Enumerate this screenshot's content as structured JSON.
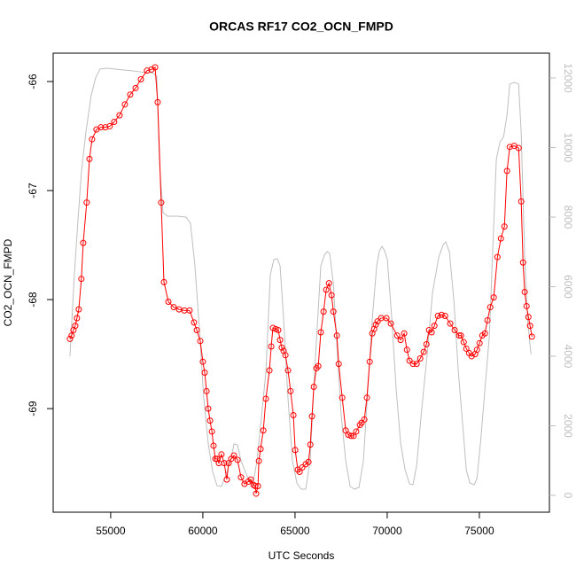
{
  "chart_data": {
    "type": "line",
    "title": "ORCAS RF17 CO2_OCN_FMPD",
    "x_label": "UTC Seconds",
    "y_label": "CO2_OCN_FMPD",
    "xlim": [
      51880,
      78800
    ],
    "xticks": [
      55000,
      60000,
      65000,
      70000,
      75000
    ],
    "ylim": [
      -69.95,
      -65.74
    ],
    "yticks": [
      -66,
      -67,
      -68,
      -69
    ],
    "y2lim": [
      -484,
      12713
    ],
    "y2ticks": [
      0,
      2000,
      4000,
      6000,
      8000,
      10000,
      12000
    ],
    "series": [
      {
        "color": "#bebebe",
        "axis": "y2",
        "x": [
          52790,
          53030,
          53220,
          53410,
          53650,
          53940,
          54180,
          54420,
          54760,
          55240,
          56200,
          56930,
          57260,
          57500,
          57650,
          57840,
          58080,
          58610,
          59090,
          59330,
          59570,
          59810,
          60050,
          60290,
          60530,
          60770,
          61010,
          61250,
          61500,
          61690,
          61880,
          62070,
          62260,
          62460,
          62700,
          62940,
          63180,
          63420,
          63660,
          63850,
          64040,
          64190,
          64380,
          64620,
          64860,
          65100,
          65340,
          65580,
          65820,
          66060,
          66400,
          66590,
          66740,
          66880,
          67080,
          67270,
          67510,
          67750,
          67990,
          68230,
          68470,
          68710,
          68950,
          69190,
          69430,
          69580,
          69720,
          69860,
          70010,
          70250,
          70490,
          70730,
          70970,
          71210,
          71400,
          71600,
          71880,
          72170,
          72460,
          72800,
          73040,
          73180,
          73380,
          73620,
          73860,
          74100,
          74290,
          74480,
          74720,
          74870,
          75060,
          75300,
          75540,
          75730,
          75920,
          76120,
          76310,
          76500,
          76650,
          76890,
          77130,
          77270,
          77460,
          77610,
          77800
        ],
        "values": [
          4000,
          6345,
          7873,
          9275,
          10421,
          11491,
          12001,
          12256,
          12281,
          12256,
          12205,
          12154,
          12154,
          12052,
          9530,
          8128,
          8026,
          8026,
          8001,
          7822,
          6599,
          4816,
          2777,
          1503,
          688,
          280,
          255,
          586,
          994,
          1478,
          1452,
          994,
          739,
          484,
          280,
          994,
          2268,
          3542,
          6345,
          6778,
          6803,
          6599,
          5071,
          2777,
          994,
          357,
          178,
          178,
          994,
          3542,
          6599,
          6905,
          7007,
          6956,
          6090,
          4306,
          2268,
          994,
          255,
          178,
          229,
          994,
          3032,
          5071,
          6599,
          7032,
          7160,
          7032,
          6778,
          5071,
          3032,
          1503,
          739,
          331,
          306,
          866,
          2523,
          4051,
          5835,
          6854,
          7211,
          7287,
          6982,
          5580,
          3542,
          2013,
          739,
          357,
          306,
          484,
          1503,
          3032,
          4561,
          7109,
          9657,
          10167,
          10294,
          10931,
          11823,
          11874,
          11823,
          10421,
          6854,
          5071,
          4051
        ]
      },
      {
        "color": "#ff0000",
        "marker": "circle",
        "x": [
          52790,
          52880,
          52980,
          53080,
          53170,
          53270,
          53410,
          53510,
          53700,
          53850,
          53990,
          54230,
          54470,
          54710,
          54950,
          55190,
          55480,
          55770,
          56060,
          56350,
          56640,
          56970,
          57210,
          57410,
          57550,
          57740,
          57890,
          58130,
          58420,
          58710,
          59000,
          59280,
          59520,
          59670,
          59860,
          60000,
          60100,
          60200,
          60290,
          60390,
          60490,
          60580,
          60680,
          60770,
          60870,
          61010,
          61160,
          61300,
          61400,
          61540,
          61690,
          61880,
          62070,
          62260,
          62460,
          62600,
          62750,
          62840,
          62890,
          62990,
          63040,
          63130,
          63280,
          63420,
          63610,
          63710,
          63800,
          63950,
          64090,
          64190,
          64280,
          64380,
          64480,
          64620,
          64760,
          64910,
          65010,
          65150,
          65250,
          65390,
          65580,
          65730,
          65830,
          65920,
          66020,
          66160,
          66260,
          66400,
          66550,
          66690,
          66840,
          66980,
          67080,
          67270,
          67370,
          67560,
          67750,
          67890,
          68040,
          68180,
          68320,
          68520,
          68610,
          68760,
          68900,
          69050,
          69190,
          69290,
          69380,
          69480,
          69670,
          69960,
          70200,
          70540,
          70730,
          70920,
          71070,
          71210,
          71400,
          71600,
          71790,
          71980,
          72130,
          72270,
          72410,
          72560,
          72750,
          72950,
          73140,
          73420,
          73660,
          73900,
          74000,
          74150,
          74290,
          74440,
          74580,
          74770,
          74870,
          75010,
          75160,
          75300,
          75440,
          75590,
          75780,
          75980,
          76170,
          76360,
          76500,
          76650,
          76890,
          77130,
          77270,
          77370,
          77460,
          77560,
          77660,
          77750,
          77850
        ],
        "values": [
          -68.36,
          -68.33,
          -68.28,
          -68.24,
          -68.17,
          -68.09,
          -67.81,
          -67.48,
          -67.11,
          -66.71,
          -66.53,
          -66.44,
          -66.42,
          -66.42,
          -66.41,
          -66.37,
          -66.31,
          -66.21,
          -66.12,
          -66.06,
          -65.98,
          -65.9,
          -65.89,
          -65.87,
          -66.19,
          -67.11,
          -67.84,
          -68.02,
          -68.07,
          -68.09,
          -68.1,
          -68.1,
          -68.21,
          -68.28,
          -68.38,
          -68.57,
          -68.67,
          -68.84,
          -69.0,
          -69.11,
          -69.21,
          -69.34,
          -69.46,
          -69.46,
          -69.5,
          -69.42,
          -69.5,
          -69.65,
          -69.5,
          -69.46,
          -69.43,
          -69.47,
          -69.63,
          -69.69,
          -69.67,
          -69.65,
          -69.7,
          -69.71,
          -69.78,
          -69.71,
          -69.48,
          -69.37,
          -69.2,
          -68.91,
          -68.65,
          -68.43,
          -68.26,
          -68.27,
          -68.28,
          -68.37,
          -68.44,
          -68.47,
          -68.51,
          -68.65,
          -68.84,
          -69.06,
          -69.38,
          -69.56,
          -69.58,
          -69.54,
          -69.51,
          -69.49,
          -69.33,
          -69.07,
          -68.8,
          -68.63,
          -68.61,
          -68.3,
          -68.11,
          -67.91,
          -67.85,
          -67.96,
          -68.11,
          -68.33,
          -68.59,
          -68.9,
          -69.2,
          -69.24,
          -69.25,
          -69.25,
          -69.21,
          -69.15,
          -69.13,
          -69.1,
          -68.9,
          -68.57,
          -68.31,
          -68.27,
          -68.23,
          -68.2,
          -68.17,
          -68.17,
          -68.22,
          -68.33,
          -68.37,
          -68.31,
          -68.46,
          -68.56,
          -68.59,
          -68.59,
          -68.54,
          -68.48,
          -68.41,
          -68.28,
          -68.3,
          -68.24,
          -68.15,
          -68.14,
          -68.15,
          -68.22,
          -68.28,
          -68.33,
          -68.33,
          -68.39,
          -68.45,
          -68.49,
          -68.52,
          -68.5,
          -68.46,
          -68.4,
          -68.33,
          -68.31,
          -68.19,
          -68.07,
          -67.98,
          -67.61,
          -67.44,
          -67.33,
          -66.82,
          -66.6,
          -66.59,
          -66.61,
          -67.1,
          -67.66,
          -67.93,
          -68.06,
          -68.16,
          -68.24,
          -68.34
        ]
      }
    ]
  }
}
